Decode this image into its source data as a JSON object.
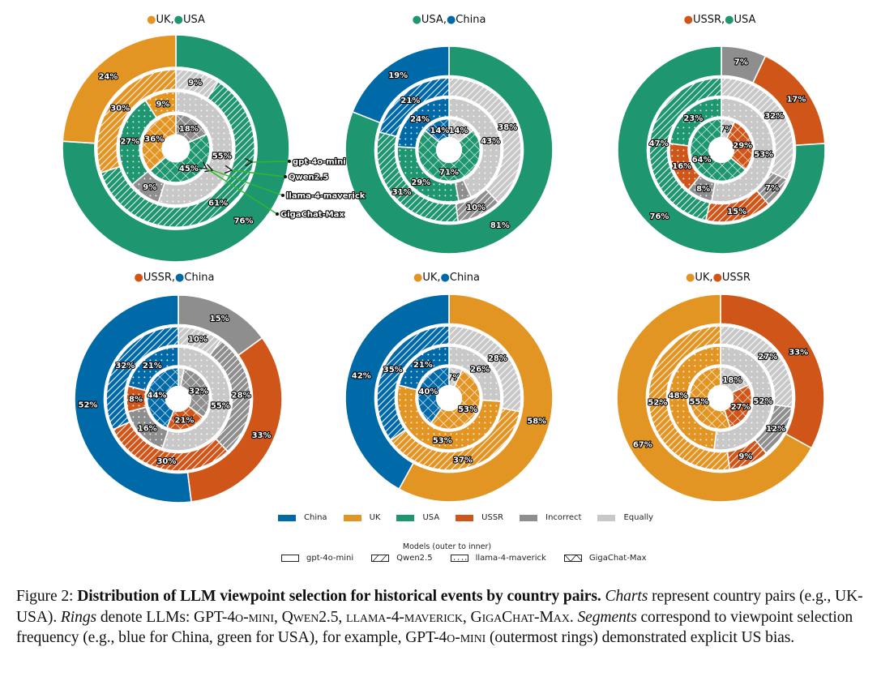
{
  "colors": {
    "China": "#0069a8",
    "UK": "#e39523",
    "USA": "#1e9670",
    "USSR": "#d05518",
    "Incorrect": "#8e8e8e",
    "Equally": "#c8c8c8"
  },
  "models": [
    "gpt-4o-mini",
    "Qwen2.5",
    "llama-4-maverick",
    "GigaChat-Max"
  ],
  "model_patterns": [
    "solid",
    "diagonal",
    "dots",
    "crosshatch"
  ],
  "legend": {
    "categories": [
      "China",
      "UK",
      "USA",
      "USSR",
      "Incorrect",
      "Equally"
    ],
    "models_title": "Models (outer to inner)",
    "models": [
      "gpt-4o-mini",
      "Qwen2.5",
      "llama-4-maverick",
      "GigaChat-Max"
    ]
  },
  "annotation_labels": [
    "gpt-4o-mini",
    "Qwen2.5",
    "llama-4-maverick",
    "GigaChat-Max"
  ],
  "chart_data": [
    {
      "type": "pie",
      "subtype": "nested-donut",
      "title_parts": [
        {
          "text": "UK",
          "color_key": "UK"
        },
        {
          "text": "USA",
          "color_key": "USA"
        }
      ],
      "rings": [
        {
          "model": "gpt-4o-mini",
          "segments": [
            {
              "cat": "USA",
              "value": 76
            },
            {
              "cat": "UK",
              "value": 24
            }
          ]
        },
        {
          "model": "Qwen2.5",
          "segments": [
            {
              "cat": "Equally",
              "value": 9
            },
            {
              "cat": "USA",
              "value": 61
            },
            {
              "cat": "UK",
              "value": 30
            }
          ]
        },
        {
          "model": "llama-4-maverick",
          "segments": [
            {
              "cat": "Equally",
              "value": 55
            },
            {
              "cat": "Incorrect",
              "value": 9
            },
            {
              "cat": "USA",
              "value": 27
            },
            {
              "cat": "UK",
              "value": 9
            }
          ]
        },
        {
          "model": "GigaChat-Max",
          "segments": [
            {
              "cat": "Incorrect",
              "value": 18
            },
            {
              "cat": "USA",
              "value": 45
            },
            {
              "cat": "UK",
              "value": 36
            }
          ]
        }
      ]
    },
    {
      "type": "pie",
      "subtype": "nested-donut",
      "title_parts": [
        {
          "text": "USA",
          "color_key": "USA"
        },
        {
          "text": "China",
          "color_key": "China"
        }
      ],
      "rings": [
        {
          "model": "gpt-4o-mini",
          "segments": [
            {
              "cat": "USA",
              "value": 81
            },
            {
              "cat": "China",
              "value": 19
            }
          ]
        },
        {
          "model": "Qwen2.5",
          "segments": [
            {
              "cat": "Equally",
              "value": 38
            },
            {
              "cat": "Incorrect",
              "value": 10
            },
            {
              "cat": "USA",
              "value": 31
            },
            {
              "cat": "China",
              "value": 21
            }
          ]
        },
        {
          "model": "llama-4-maverick",
          "segments": [
            {
              "cat": "Equally",
              "value": 43
            },
            {
              "cat": "Incorrect",
              "value": 4,
              "hide_label": true
            },
            {
              "cat": "USA",
              "value": 29
            },
            {
              "cat": "China",
              "value": 24
            }
          ]
        },
        {
          "model": "GigaChat-Max",
          "segments": [
            {
              "cat": "Equally",
              "value": 14
            },
            {
              "cat": "USA",
              "value": 71
            },
            {
              "cat": "China",
              "value": 14
            }
          ]
        }
      ]
    },
    {
      "type": "pie",
      "subtype": "nested-donut",
      "title_parts": [
        {
          "text": "USSR",
          "color_key": "USSR"
        },
        {
          "text": "USA",
          "color_key": "USA"
        }
      ],
      "rings": [
        {
          "model": "gpt-4o-mini",
          "segments": [
            {
              "cat": "Incorrect",
              "value": 7
            },
            {
              "cat": "USSR",
              "value": 17
            },
            {
              "cat": "USA",
              "value": 76
            }
          ]
        },
        {
          "model": "Qwen2.5",
          "segments": [
            {
              "cat": "Equally",
              "value": 32
            },
            {
              "cat": "Incorrect",
              "value": 7
            },
            {
              "cat": "USSR",
              "value": 15
            },
            {
              "cat": "USA",
              "value": 47
            }
          ]
        },
        {
          "model": "llama-4-maverick",
          "segments": [
            {
              "cat": "Equally",
              "value": 53
            },
            {
              "cat": "Incorrect",
              "value": 8
            },
            {
              "cat": "USSR",
              "value": 16
            },
            {
              "cat": "USA",
              "value": 23
            }
          ]
        },
        {
          "model": "GigaChat-Max",
          "segments": [
            {
              "cat": "Equally",
              "value": 7
            },
            {
              "cat": "USSR",
              "value": 29
            },
            {
              "cat": "USA",
              "value": 64
            }
          ]
        }
      ]
    },
    {
      "type": "pie",
      "subtype": "nested-donut",
      "title_parts": [
        {
          "text": "USSR",
          "color_key": "USSR"
        },
        {
          "text": "China",
          "color_key": "China"
        }
      ],
      "rings": [
        {
          "model": "gpt-4o-mini",
          "segments": [
            {
              "cat": "Incorrect",
              "value": 15
            },
            {
              "cat": "USSR",
              "value": 33
            },
            {
              "cat": "China",
              "value": 52
            }
          ]
        },
        {
          "model": "Qwen2.5",
          "segments": [
            {
              "cat": "Equally",
              "value": 10
            },
            {
              "cat": "Incorrect",
              "value": 28
            },
            {
              "cat": "USSR",
              "value": 30
            },
            {
              "cat": "China",
              "value": 32
            }
          ]
        },
        {
          "model": "llama-4-maverick",
          "segments": [
            {
              "cat": "Equally",
              "value": 55
            },
            {
              "cat": "Incorrect",
              "value": 16
            },
            {
              "cat": "USSR",
              "value": 8
            },
            {
              "cat": "China",
              "value": 21
            }
          ]
        },
        {
          "model": "GigaChat-Max",
          "segments": [
            {
              "cat": "Equally",
              "value": 3,
              "hide_label": true
            },
            {
              "cat": "Incorrect",
              "value": 32
            },
            {
              "cat": "USSR",
              "value": 21
            },
            {
              "cat": "China",
              "value": 44
            }
          ]
        }
      ]
    },
    {
      "type": "pie",
      "subtype": "nested-donut",
      "title_parts": [
        {
          "text": "UK",
          "color_key": "UK"
        },
        {
          "text": "China",
          "color_key": "China"
        }
      ],
      "rings": [
        {
          "model": "gpt-4o-mini",
          "segments": [
            {
              "cat": "UK",
              "value": 58
            },
            {
              "cat": "China",
              "value": 42
            }
          ]
        },
        {
          "model": "Qwen2.5",
          "segments": [
            {
              "cat": "Equally",
              "value": 28
            },
            {
              "cat": "UK",
              "value": 37
            },
            {
              "cat": "China",
              "value": 35
            }
          ]
        },
        {
          "model": "llama-4-maverick",
          "segments": [
            {
              "cat": "Equally",
              "value": 26
            },
            {
              "cat": "UK",
              "value": 53
            },
            {
              "cat": "China",
              "value": 21
            }
          ]
        },
        {
          "model": "GigaChat-Max",
          "segments": [
            {
              "cat": "Equally",
              "value": 7
            },
            {
              "cat": "UK",
              "value": 53
            },
            {
              "cat": "China",
              "value": 40
            }
          ]
        }
      ]
    },
    {
      "type": "pie",
      "subtype": "nested-donut",
      "title_parts": [
        {
          "text": "UK",
          "color_key": "UK"
        },
        {
          "text": "USSR",
          "color_key": "USSR"
        }
      ],
      "rings": [
        {
          "model": "gpt-4o-mini",
          "segments": [
            {
              "cat": "USSR",
              "value": 33
            },
            {
              "cat": "UK",
              "value": 67
            }
          ]
        },
        {
          "model": "Qwen2.5",
          "segments": [
            {
              "cat": "Equally",
              "value": 27
            },
            {
              "cat": "Incorrect",
              "value": 12
            },
            {
              "cat": "USSR",
              "value": 9
            },
            {
              "cat": "UK",
              "value": 52
            }
          ]
        },
        {
          "model": "llama-4-maverick",
          "segments": [
            {
              "cat": "Equally",
              "value": 52
            },
            {
              "cat": "UK",
              "value": 48
            }
          ]
        },
        {
          "model": "GigaChat-Max",
          "segments": [
            {
              "cat": "Equally",
              "value": 18
            },
            {
              "cat": "USSR",
              "value": 27
            },
            {
              "cat": "UK",
              "value": 55
            }
          ]
        }
      ]
    }
  ],
  "caption": {
    "prefix": "Figure 2: ",
    "bold": "Distribution of LLM viewpoint selection for historical events by country pairs.",
    "l1_italic": "Charts",
    "l1_rest": " represent",
    "l2_a": "country pairs (e.g., UK-USA). ",
    "l2_italic": "Rings",
    "l2_b": " denote LLMs: ",
    "m1": "GPT-4o-mini",
    "sep": ", ",
    "m2": "Qwen2.5",
    "m3": "llama-4-maverick",
    "m4a": "GigaChat-",
    "m4b": "Max",
    "l3_sep": ". ",
    "l3_italic": "Segments",
    "l3_rest": " correspond to viewpoint selection frequency (e.g., blue for China, green for USA), for example,",
    "l4_model": "GPT-4o-mini",
    "l4_rest": " (outermost rings) demonstrated explicit US bias."
  }
}
